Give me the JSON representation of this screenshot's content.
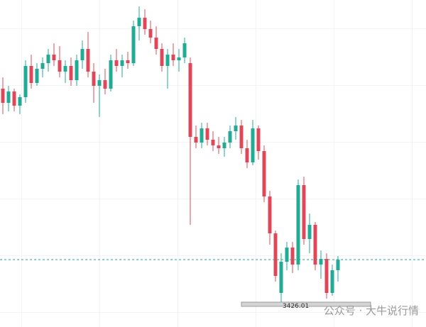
{
  "chart_data": {
    "type": "candlestick",
    "open": [
      3502,
      3497,
      3501,
      3496,
      3499,
      3510,
      3504,
      3509,
      3511,
      3514,
      3512,
      3508,
      3510,
      3505,
      3512,
      3516,
      3508,
      3503,
      3505,
      3502,
      3512,
      3510,
      3512,
      3511,
      3524,
      3527,
      3523,
      3520,
      3516,
      3510,
      3514,
      3512,
      3513,
      3511,
      3485,
      3483,
      3488,
      3484,
      3482,
      3481,
      3483,
      3487,
      3489,
      3481,
      3476,
      3488,
      3480,
      3464,
      3451,
      3430,
      3441,
      3446,
      3440,
      3468,
      3449,
      3454,
      3440,
      3442,
      3430,
      3438
    ],
    "high": [
      3506,
      3503,
      3502,
      3500,
      3512,
      3514,
      3511,
      3513,
      3516,
      3518,
      3517,
      3512,
      3513,
      3514,
      3519,
      3522,
      3511,
      3507,
      3509,
      3514,
      3516,
      3514,
      3515,
      3526,
      3531,
      3530,
      3526,
      3524,
      3518,
      3516,
      3518,
      3516,
      3520,
      3513,
      3489,
      3490,
      3490,
      3487,
      3485,
      3485,
      3489,
      3492,
      3491,
      3484,
      3491,
      3489,
      3482,
      3466,
      3452,
      3444,
      3448,
      3448,
      3470,
      3471,
      3458,
      3455,
      3445,
      3444,
      3440,
      3443
    ],
    "low": [
      3493,
      3494,
      3494,
      3493,
      3497,
      3502,
      3503,
      3506,
      3508,
      3510,
      3506,
      3504,
      3503,
      3503,
      3509,
      3506,
      3497,
      3492,
      3500,
      3501,
      3508,
      3506,
      3509,
      3510,
      3519,
      3521,
      3518,
      3514,
      3508,
      3502,
      3510,
      3508,
      3511,
      3454,
      3481,
      3481,
      3482,
      3480,
      3479,
      3478,
      3481,
      3484,
      3479,
      3474,
      3475,
      3477,
      3462,
      3447,
      3434,
      3426.01,
      3438,
      3437,
      3438,
      3447,
      3444,
      3438,
      3435,
      3428,
      3429,
      3434
    ],
    "close": [
      3497,
      3501,
      3496,
      3499,
      3510,
      3504,
      3509,
      3511,
      3514,
      3512,
      3508,
      3510,
      3505,
      3512,
      3516,
      3508,
      3503,
      3505,
      3502,
      3512,
      3510,
      3512,
      3511,
      3524,
      3527,
      3523,
      3520,
      3516,
      3510,
      3514,
      3512,
      3513,
      3518,
      3485,
      3483,
      3488,
      3484,
      3482,
      3481,
      3483,
      3487,
      3489,
      3481,
      3476,
      3488,
      3480,
      3464,
      3451,
      3436,
      3441,
      3446,
      3440,
      3468,
      3449,
      3454,
      3440,
      3442,
      3430,
      3438,
      3441.75
    ],
    "up_color": "#22ab94",
    "down_color": "#e0485a",
    "ylim": [
      3418,
      3533.25
    ],
    "last_price": 3441.75,
    "last_price_color": "#26a69a",
    "low_marker": 3426.01,
    "watermark": "公众号 · 大牛说行情"
  }
}
